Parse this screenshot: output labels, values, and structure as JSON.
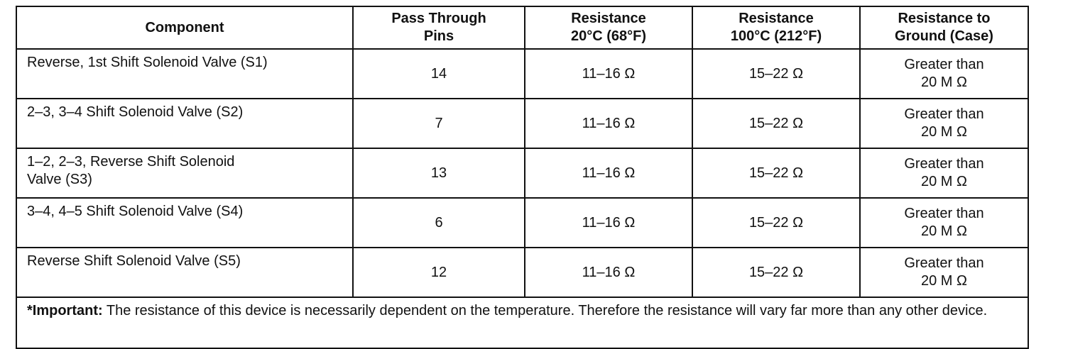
{
  "table": {
    "header": [
      [
        "Component"
      ],
      [
        "Pass Through",
        "Pins"
      ],
      [
        "Resistance",
        "20°C (68°F)"
      ],
      [
        "Resistance",
        "100°C (212°F)"
      ],
      [
        "Resistance to",
        "Ground (Case)"
      ]
    ],
    "rows": [
      [
        [
          "Reverse, 1st Shift Solenoid Valve (S1)"
        ],
        [
          "14"
        ],
        [
          "11–16 Ω"
        ],
        [
          "15–22 Ω"
        ],
        [
          "Greater than",
          "20 M Ω"
        ]
      ],
      [
        [
          "2–3, 3–4 Shift Solenoid Valve (S2)"
        ],
        [
          "7"
        ],
        [
          "11–16 Ω"
        ],
        [
          "15–22 Ω"
        ],
        [
          "Greater than",
          "20 M Ω"
        ]
      ],
      [
        [
          "1–2, 2–3, Reverse Shift Solenoid",
          "Valve (S3)"
        ],
        [
          "13"
        ],
        [
          "11–16 Ω"
        ],
        [
          "15–22 Ω"
        ],
        [
          "Greater than",
          "20 M Ω"
        ]
      ],
      [
        [
          "3–4, 4–5 Shift Solenoid Valve (S4)"
        ],
        [
          "6"
        ],
        [
          "11–16 Ω"
        ],
        [
          "15–22 Ω"
        ],
        [
          "Greater than",
          "20 M Ω"
        ]
      ],
      [
        [
          "Reverse Shift Solenoid Valve (S5)"
        ],
        [
          "12"
        ],
        [
          "11–16 Ω"
        ],
        [
          "15–22 Ω"
        ],
        [
          "Greater than",
          "20 M Ω"
        ]
      ]
    ],
    "note": {
      "label": "*Important:",
      "text": "The resistance of this device is necessarily dependent on the temperature. Therefore the resistance will vary far more than any other device."
    }
  }
}
